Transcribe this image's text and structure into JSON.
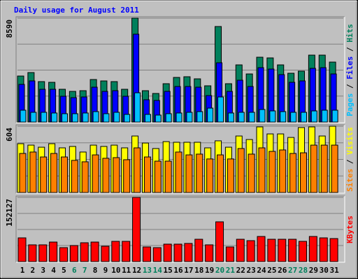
{
  "chart_data": [
    {
      "type": "bar",
      "title": "Daily usage for August 2011",
      "title_color": "#0000ff",
      "ylim": [
        0,
        8590
      ],
      "yticks": [
        8590
      ],
      "ygrid": [
        2147.5,
        4295,
        6442.5
      ],
      "grid": true,
      "legend_separator": "/",
      "series": [
        {
          "name": "Hits",
          "color": "#00805c",
          "values": [
            3805,
            4093,
            3344,
            3286,
            2710,
            2537,
            2594,
            3517,
            3401,
            3344,
            2710,
            8590,
            2594,
            2364,
            3171,
            3690,
            3747,
            3574,
            2998,
            7898,
            3171,
            4727,
            3978,
            5361,
            5304,
            4727,
            4036,
            4208,
            5534,
            5534,
            4958
          ]
        },
        {
          "name": "Files",
          "color": "#0000ff",
          "values": [
            3113,
            3401,
            2710,
            2710,
            2133,
            2018,
            2075,
            2883,
            2537,
            2594,
            2133,
            7264,
            1845,
            1787,
            2537,
            2940,
            2940,
            2883,
            2191,
            4900,
            2537,
            3459,
            2940,
            4497,
            4381,
            3920,
            3286,
            3401,
            4439,
            4497,
            3978
          ]
        },
        {
          "name": "Pages",
          "color": "#00c0ff",
          "values": [
            980,
            807,
            807,
            749,
            692,
            692,
            749,
            865,
            692,
            807,
            634,
            2421,
            634,
            577,
            692,
            749,
            807,
            865,
            1153,
            2075,
            749,
            807,
            807,
            1038,
            922,
            865,
            807,
            807,
            922,
            980,
            980
          ]
        }
      ]
    },
    {
      "type": "bar",
      "ylim": [
        0,
        604
      ],
      "yticks": [
        604
      ],
      "ygrid": [
        151,
        302,
        453
      ],
      "grid": true,
      "legend_separator": "/",
      "series": [
        {
          "name": "Visits",
          "color": "#ffff00",
          "values": [
            445,
            432,
            413,
            445,
            407,
            420,
            369,
            432,
            420,
            432,
            407,
            515,
            451,
            401,
            464,
            458,
            458,
            458,
            407,
            471,
            413,
            515,
            483,
            598,
            534,
            534,
            502,
            592,
            598,
            515,
            604
          ]
        },
        {
          "name": "Sites",
          "color": "#ff8000",
          "values": [
            356,
            369,
            324,
            356,
            324,
            293,
            280,
            343,
            312,
            318,
            299,
            407,
            324,
            286,
            286,
            369,
            343,
            350,
            306,
            343,
            306,
            401,
            350,
            407,
            375,
            388,
            356,
            362,
            432,
            432,
            432
          ]
        }
      ]
    },
    {
      "type": "bar",
      "ylim": [
        0,
        152127
      ],
      "yticks": [
        152127
      ],
      "ygrid": [
        38031.75,
        76063.5,
        114095.25
      ],
      "grid": true,
      "categories": [
        "1",
        "2",
        "3",
        "4",
        "5",
        "6",
        "7",
        "8",
        "9",
        "10",
        "11",
        "12",
        "13",
        "14",
        "15",
        "16",
        "17",
        "18",
        "19",
        "20",
        "21",
        "22",
        "23",
        "24",
        "25",
        "26",
        "27",
        "28",
        "29",
        "30",
        "31"
      ],
      "category_colors": [
        "#000000",
        "#000000",
        "#000000",
        "#000000",
        "#000000",
        "#00805c",
        "#00805c",
        "#000000",
        "#000000",
        "#000000",
        "#000000",
        "#000000",
        "#00805c",
        "#00805c",
        "#000000",
        "#000000",
        "#000000",
        "#000000",
        "#000000",
        "#00805c",
        "#00805c",
        "#000000",
        "#000000",
        "#000000",
        "#000000",
        "#000000",
        "#00805c",
        "#00805c",
        "#000000",
        "#000000",
        "#000000"
      ],
      "series": [
        {
          "name": "KBytes",
          "color": "#ff0000",
          "values": [
            56220,
            39680,
            39680,
            46280,
            33060,
            38020,
            44630,
            46280,
            36370,
            47940,
            47940,
            152127,
            34710,
            33060,
            41330,
            41330,
            42980,
            52900,
            39680,
            94240,
            34710,
            52900,
            49600,
            59520,
            52900,
            52900,
            52900,
            47940,
            59520,
            56220,
            54560
          ]
        }
      ]
    }
  ]
}
